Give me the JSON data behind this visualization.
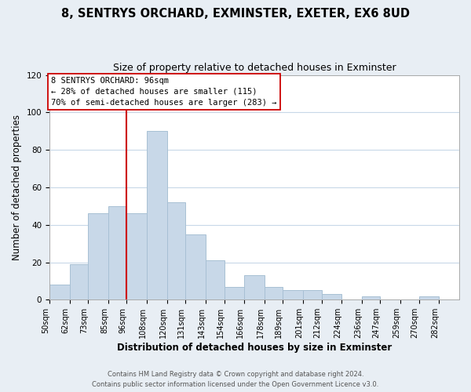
{
  "title": "8, SENTRYS ORCHARD, EXMINSTER, EXETER, EX6 8UD",
  "subtitle": "Size of property relative to detached houses in Exminster",
  "xlabel": "Distribution of detached houses by size in Exminster",
  "ylabel": "Number of detached properties",
  "bar_color": "#c8d8e8",
  "bar_edge_color": "#a8c0d4",
  "bin_labels": [
    "50sqm",
    "62sqm",
    "73sqm",
    "85sqm",
    "96sqm",
    "108sqm",
    "120sqm",
    "131sqm",
    "143sqm",
    "154sqm",
    "166sqm",
    "178sqm",
    "189sqm",
    "201sqm",
    "212sqm",
    "224sqm",
    "236sqm",
    "247sqm",
    "259sqm",
    "270sqm",
    "282sqm"
  ],
  "bin_edges": [
    50,
    62,
    73,
    85,
    96,
    108,
    120,
    131,
    143,
    154,
    166,
    178,
    189,
    201,
    212,
    224,
    236,
    247,
    259,
    270,
    282,
    294
  ],
  "counts": [
    8,
    19,
    46,
    50,
    46,
    90,
    52,
    35,
    21,
    7,
    13,
    7,
    5,
    5,
    3,
    0,
    2,
    0,
    0,
    2,
    0
  ],
  "ylim": [
    0,
    120
  ],
  "yticks": [
    0,
    20,
    40,
    60,
    80,
    100,
    120
  ],
  "property_line_x": 96,
  "property_line_color": "#cc0000",
  "annotation_line1": "8 SENTRYS ORCHARD: 96sqm",
  "annotation_line2": "← 28% of detached houses are smaller (115)",
  "annotation_line3": "70% of semi-detached houses are larger (283) →",
  "footer_line1": "Contains HM Land Registry data © Crown copyright and database right 2024.",
  "footer_line2": "Contains public sector information licensed under the Open Government Licence v3.0.",
  "background_color": "#e8eef4",
  "plot_bg_color": "#ffffff",
  "grid_color": "#c8d8e8",
  "title_fontsize": 10.5,
  "subtitle_fontsize": 9,
  "axis_label_fontsize": 8.5,
  "tick_fontsize": 7,
  "footer_fontsize": 6
}
